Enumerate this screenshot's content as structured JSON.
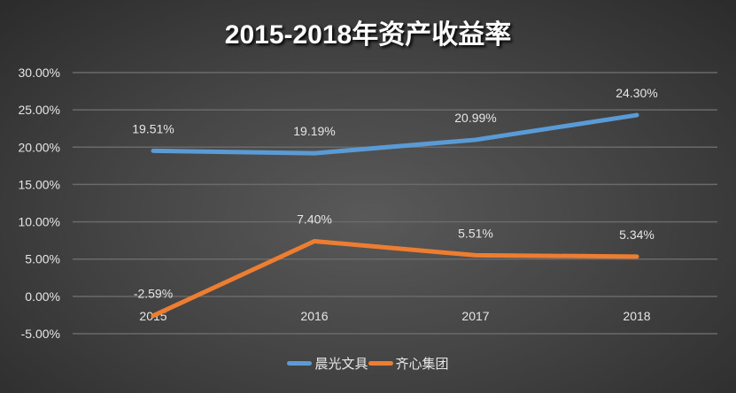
{
  "chart_data": {
    "type": "line",
    "title": "2015-2018年资产收益率",
    "categories": [
      "2015",
      "2016",
      "2017",
      "2018"
    ],
    "series": [
      {
        "name": "晨光文具",
        "values": [
          19.51,
          19.19,
          20.99,
          24.3
        ],
        "labels": [
          "19.51%",
          "19.19%",
          "20.99%",
          "24.30%"
        ],
        "color": "#5b9bd5"
      },
      {
        "name": "齐心集团",
        "values": [
          -2.59,
          7.4,
          5.51,
          5.34
        ],
        "labels": [
          "-2.59%",
          "7.40%",
          "5.51%",
          "5.34%"
        ],
        "color": "#ed7d31"
      }
    ],
    "yticks": [
      "30.00%",
      "25.00%",
      "20.00%",
      "15.00%",
      "10.00%",
      "5.00%",
      "0.00%",
      "-5.00%"
    ],
    "ylim": [
      -5,
      30
    ],
    "grid": true,
    "legend": "bottom",
    "xlabel": "",
    "ylabel": ""
  }
}
